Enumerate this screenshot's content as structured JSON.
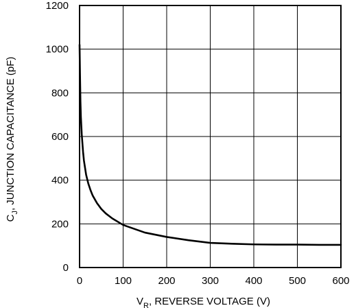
{
  "chart_data": {
    "type": "line",
    "xlim": [
      0,
      600
    ],
    "ylim": [
      0,
      1200
    ],
    "x_ticks": [
      "0",
      "100",
      "200",
      "300",
      "400",
      "500",
      "600"
    ],
    "y_ticks": [
      "0",
      "200",
      "400",
      "600",
      "800",
      "1000",
      "1200"
    ],
    "xlabel": {
      "main": "V",
      "sub": "R",
      "rest": ", REVERSE VOLTAGE (V)"
    },
    "ylabel": {
      "main": "C",
      "sub": "J",
      "rest": ", JUNCTION CAPACITANCE (pF)"
    },
    "grid": true,
    "series": [
      {
        "x": [
          0,
          1,
          2,
          3,
          5,
          8,
          10,
          15,
          20,
          25,
          30,
          40,
          50,
          60,
          75,
          100,
          150,
          200,
          250,
          300,
          350,
          400,
          450,
          500,
          550,
          600
        ],
        "y": [
          1020,
          880,
          760,
          690,
          610,
          530,
          490,
          425,
          385,
          355,
          330,
          295,
          268,
          248,
          225,
          195,
          160,
          140,
          125,
          113,
          109,
          106,
          105,
          105,
          104,
          104
        ]
      }
    ]
  }
}
